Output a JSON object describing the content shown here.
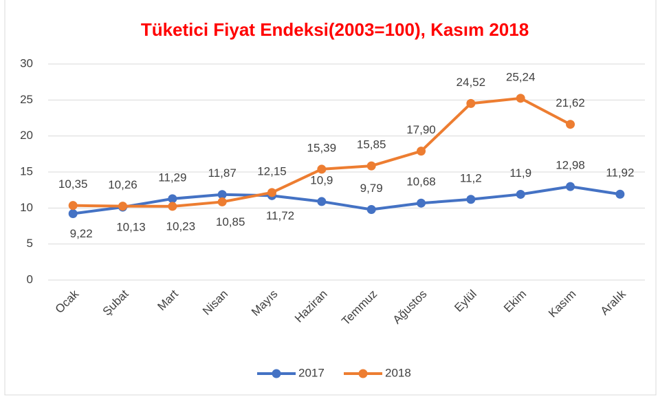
{
  "chart_data": {
    "type": "line",
    "title": "Tüketici Fiyat Endeksi(2003=100), Kasım 2018",
    "categories": [
      "Ocak",
      "Şubat",
      "Mart",
      "Nisan",
      "Mayıs",
      "Haziran",
      "Temmuz",
      "Ağustos",
      "Eylül",
      "Ekim",
      "Kasım",
      "Aralık"
    ],
    "series": [
      {
        "name": "2017",
        "color": "#4472c4",
        "values": [
          9.22,
          10.13,
          11.29,
          11.87,
          11.72,
          10.9,
          9.79,
          10.68,
          11.2,
          11.9,
          12.98,
          11.92
        ],
        "value_labels": [
          "9,22",
          "10,13",
          "11,29",
          "11,87",
          "11,72",
          "10,9",
          "9,79",
          "10,68",
          "11,2",
          "11,9",
          "12,98",
          "11,92"
        ]
      },
      {
        "name": "2018",
        "color": "#ed7d31",
        "values": [
          10.35,
          10.26,
          10.23,
          10.85,
          12.15,
          15.39,
          15.85,
          17.9,
          24.52,
          25.24,
          21.62,
          null
        ],
        "value_labels": [
          "10,35",
          "10,26",
          "10,23",
          "10,85",
          "12,15",
          "15,39",
          "15,85",
          "17,90",
          "24,52",
          "25,24",
          "21,62",
          null
        ]
      }
    ],
    "ylim": [
      0,
      30
    ],
    "yticks": [
      0,
      5,
      10,
      15,
      20,
      25,
      30
    ],
    "grid": true,
    "legend": "bottom"
  }
}
